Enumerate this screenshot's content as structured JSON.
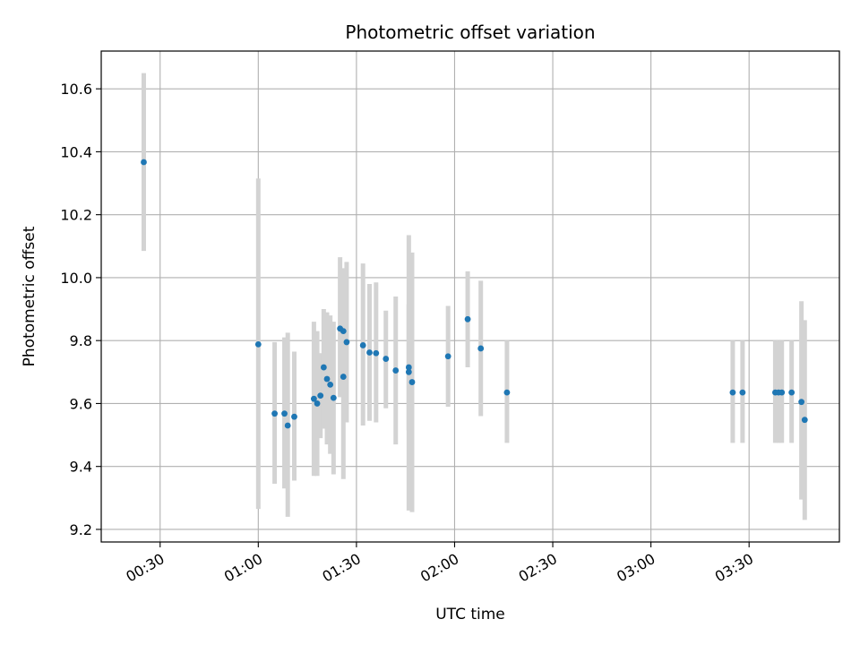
{
  "chart_data": {
    "type": "scatter",
    "title": "Photometric offset variation",
    "xlabel": "UTC time",
    "ylabel": "Photometric offset",
    "x_unit": "minutes",
    "xlim": [
      0.2,
      3.96
    ],
    "ylim": [
      9.16,
      10.72
    ],
    "grid": true,
    "x_ticks": [
      {
        "value": 0.5,
        "label": "00:30"
      },
      {
        "value": 1.0,
        "label": "01:00"
      },
      {
        "value": 1.5,
        "label": "01:30"
      },
      {
        "value": 2.0,
        "label": "02:00"
      },
      {
        "value": 2.5,
        "label": "02:30"
      },
      {
        "value": 3.0,
        "label": "03:00"
      },
      {
        "value": 3.5,
        "label": "03:30"
      }
    ],
    "y_ticks": [
      {
        "value": 9.2,
        "label": "9.2"
      },
      {
        "value": 9.4,
        "label": "9.4"
      },
      {
        "value": 9.6,
        "label": "9.6"
      },
      {
        "value": 9.8,
        "label": "9.8"
      },
      {
        "value": 10.0,
        "label": "10.0"
      },
      {
        "value": 10.2,
        "label": "10.2"
      },
      {
        "value": 10.4,
        "label": "10.4"
      },
      {
        "value": 10.6,
        "label": "10.6"
      }
    ],
    "point_color": "#1f77b4",
    "errorbar_color": "#d3d3d3",
    "points": [
      {
        "t": "00:25",
        "y": 10.367,
        "lo": 10.085,
        "hi": 10.65
      },
      {
        "t": "01:00",
        "y": 9.788,
        "lo": 9.265,
        "hi": 10.315
      },
      {
        "t": "01:05",
        "y": 9.568,
        "lo": 9.345,
        "hi": 9.795
      },
      {
        "t": "01:08",
        "y": 9.568,
        "lo": 9.33,
        "hi": 9.81
      },
      {
        "t": "01:09",
        "y": 9.53,
        "lo": 9.24,
        "hi": 9.825
      },
      {
        "t": "01:11",
        "y": 9.558,
        "lo": 9.355,
        "hi": 9.765
      },
      {
        "t": "01:17",
        "y": 9.615,
        "lo": 9.37,
        "hi": 9.86
      },
      {
        "t": "01:18",
        "y": 9.6,
        "lo": 9.37,
        "hi": 9.83
      },
      {
        "t": "01:19",
        "y": 9.625,
        "lo": 9.49,
        "hi": 9.76
      },
      {
        "t": "01:20",
        "y": 9.715,
        "lo": 9.52,
        "hi": 9.9
      },
      {
        "t": "01:21",
        "y": 9.678,
        "lo": 9.47,
        "hi": 9.89
      },
      {
        "t": "01:22",
        "y": 9.66,
        "lo": 9.44,
        "hi": 9.88
      },
      {
        "t": "01:23",
        "y": 9.618,
        "lo": 9.375,
        "hi": 9.86
      },
      {
        "t": "01:25",
        "y": 9.838,
        "lo": 9.62,
        "hi": 10.065
      },
      {
        "t": "01:26",
        "y": 9.83,
        "lo": 9.62,
        "hi": 10.03
      },
      {
        "t": "01:26",
        "y": 9.685,
        "lo": 9.36,
        "hi": 10.01
      },
      {
        "t": "01:27",
        "y": 9.795,
        "lo": 9.54,
        "hi": 10.05
      },
      {
        "t": "01:32",
        "y": 9.785,
        "lo": 9.53,
        "hi": 10.045
      },
      {
        "t": "01:34",
        "y": 9.762,
        "lo": 9.545,
        "hi": 9.98
      },
      {
        "t": "01:36",
        "y": 9.76,
        "lo": 9.54,
        "hi": 9.985
      },
      {
        "t": "01:39",
        "y": 9.742,
        "lo": 9.585,
        "hi": 9.895
      },
      {
        "t": "01:42",
        "y": 9.705,
        "lo": 9.47,
        "hi": 9.94
      },
      {
        "t": "01:46",
        "y": 9.715,
        "lo": 9.515,
        "hi": 9.915
      },
      {
        "t": "01:46",
        "y": 9.7,
        "lo": 9.26,
        "hi": 10.135
      },
      {
        "t": "01:47",
        "y": 9.668,
        "lo": 9.255,
        "hi": 10.08
      },
      {
        "t": "01:58",
        "y": 9.75,
        "lo": 9.59,
        "hi": 9.91
      },
      {
        "t": "02:04",
        "y": 9.868,
        "lo": 9.715,
        "hi": 10.02
      },
      {
        "t": "02:08",
        "y": 9.775,
        "lo": 9.56,
        "hi": 9.99
      },
      {
        "t": "02:16",
        "y": 9.635,
        "lo": 9.475,
        "hi": 9.8
      },
      {
        "t": "03:25",
        "y": 9.635,
        "lo": 9.475,
        "hi": 9.8
      },
      {
        "t": "03:28",
        "y": 9.635,
        "lo": 9.475,
        "hi": 9.8
      },
      {
        "t": "03:38",
        "y": 9.635,
        "lo": 9.475,
        "hi": 9.8
      },
      {
        "t": "03:39",
        "y": 9.635,
        "lo": 9.475,
        "hi": 9.8
      },
      {
        "t": "03:40",
        "y": 9.635,
        "lo": 9.475,
        "hi": 9.8
      },
      {
        "t": "03:43",
        "y": 9.635,
        "lo": 9.475,
        "hi": 9.8
      },
      {
        "t": "03:46",
        "y": 9.605,
        "lo": 9.295,
        "hi": 9.925
      },
      {
        "t": "03:47",
        "y": 9.548,
        "lo": 9.23,
        "hi": 9.865
      }
    ]
  }
}
